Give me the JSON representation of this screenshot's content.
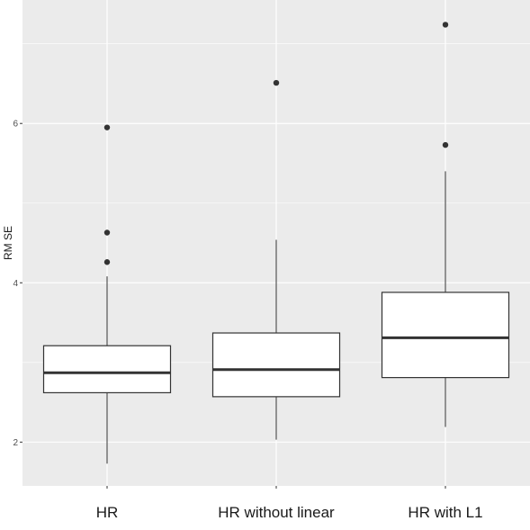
{
  "chart_data": {
    "type": "boxplot",
    "title": "",
    "xlabel": "",
    "ylabel": "RM SE",
    "ylim": [
      1.45,
      7.55
    ],
    "yticks": [
      2,
      4,
      6
    ],
    "grid": true,
    "legend": "none",
    "categories": [
      "HR",
      "HR without linear",
      "HR with L1"
    ],
    "boxes": [
      {
        "category": "HR",
        "whisker_low": 1.73,
        "q1": 2.62,
        "median": 2.87,
        "q3": 3.21,
        "whisker_high": 4.08,
        "outliers": [
          4.26,
          4.63,
          5.95
        ]
      },
      {
        "category": "HR without linear",
        "whisker_low": 2.03,
        "q1": 2.57,
        "median": 2.91,
        "q3": 3.37,
        "whisker_high": 4.54,
        "outliers": [
          6.51
        ]
      },
      {
        "category": "HR with L1",
        "whisker_low": 2.19,
        "q1": 2.81,
        "median": 3.31,
        "q3": 3.88,
        "whisker_high": 5.4,
        "outliers": [
          5.73,
          7.24
        ]
      }
    ],
    "colors": {
      "panel": "#ebebeb",
      "grid": "#ffffff",
      "box_fill": "#ffffff",
      "box_stroke": "#333333",
      "outlier": "#333333"
    }
  }
}
